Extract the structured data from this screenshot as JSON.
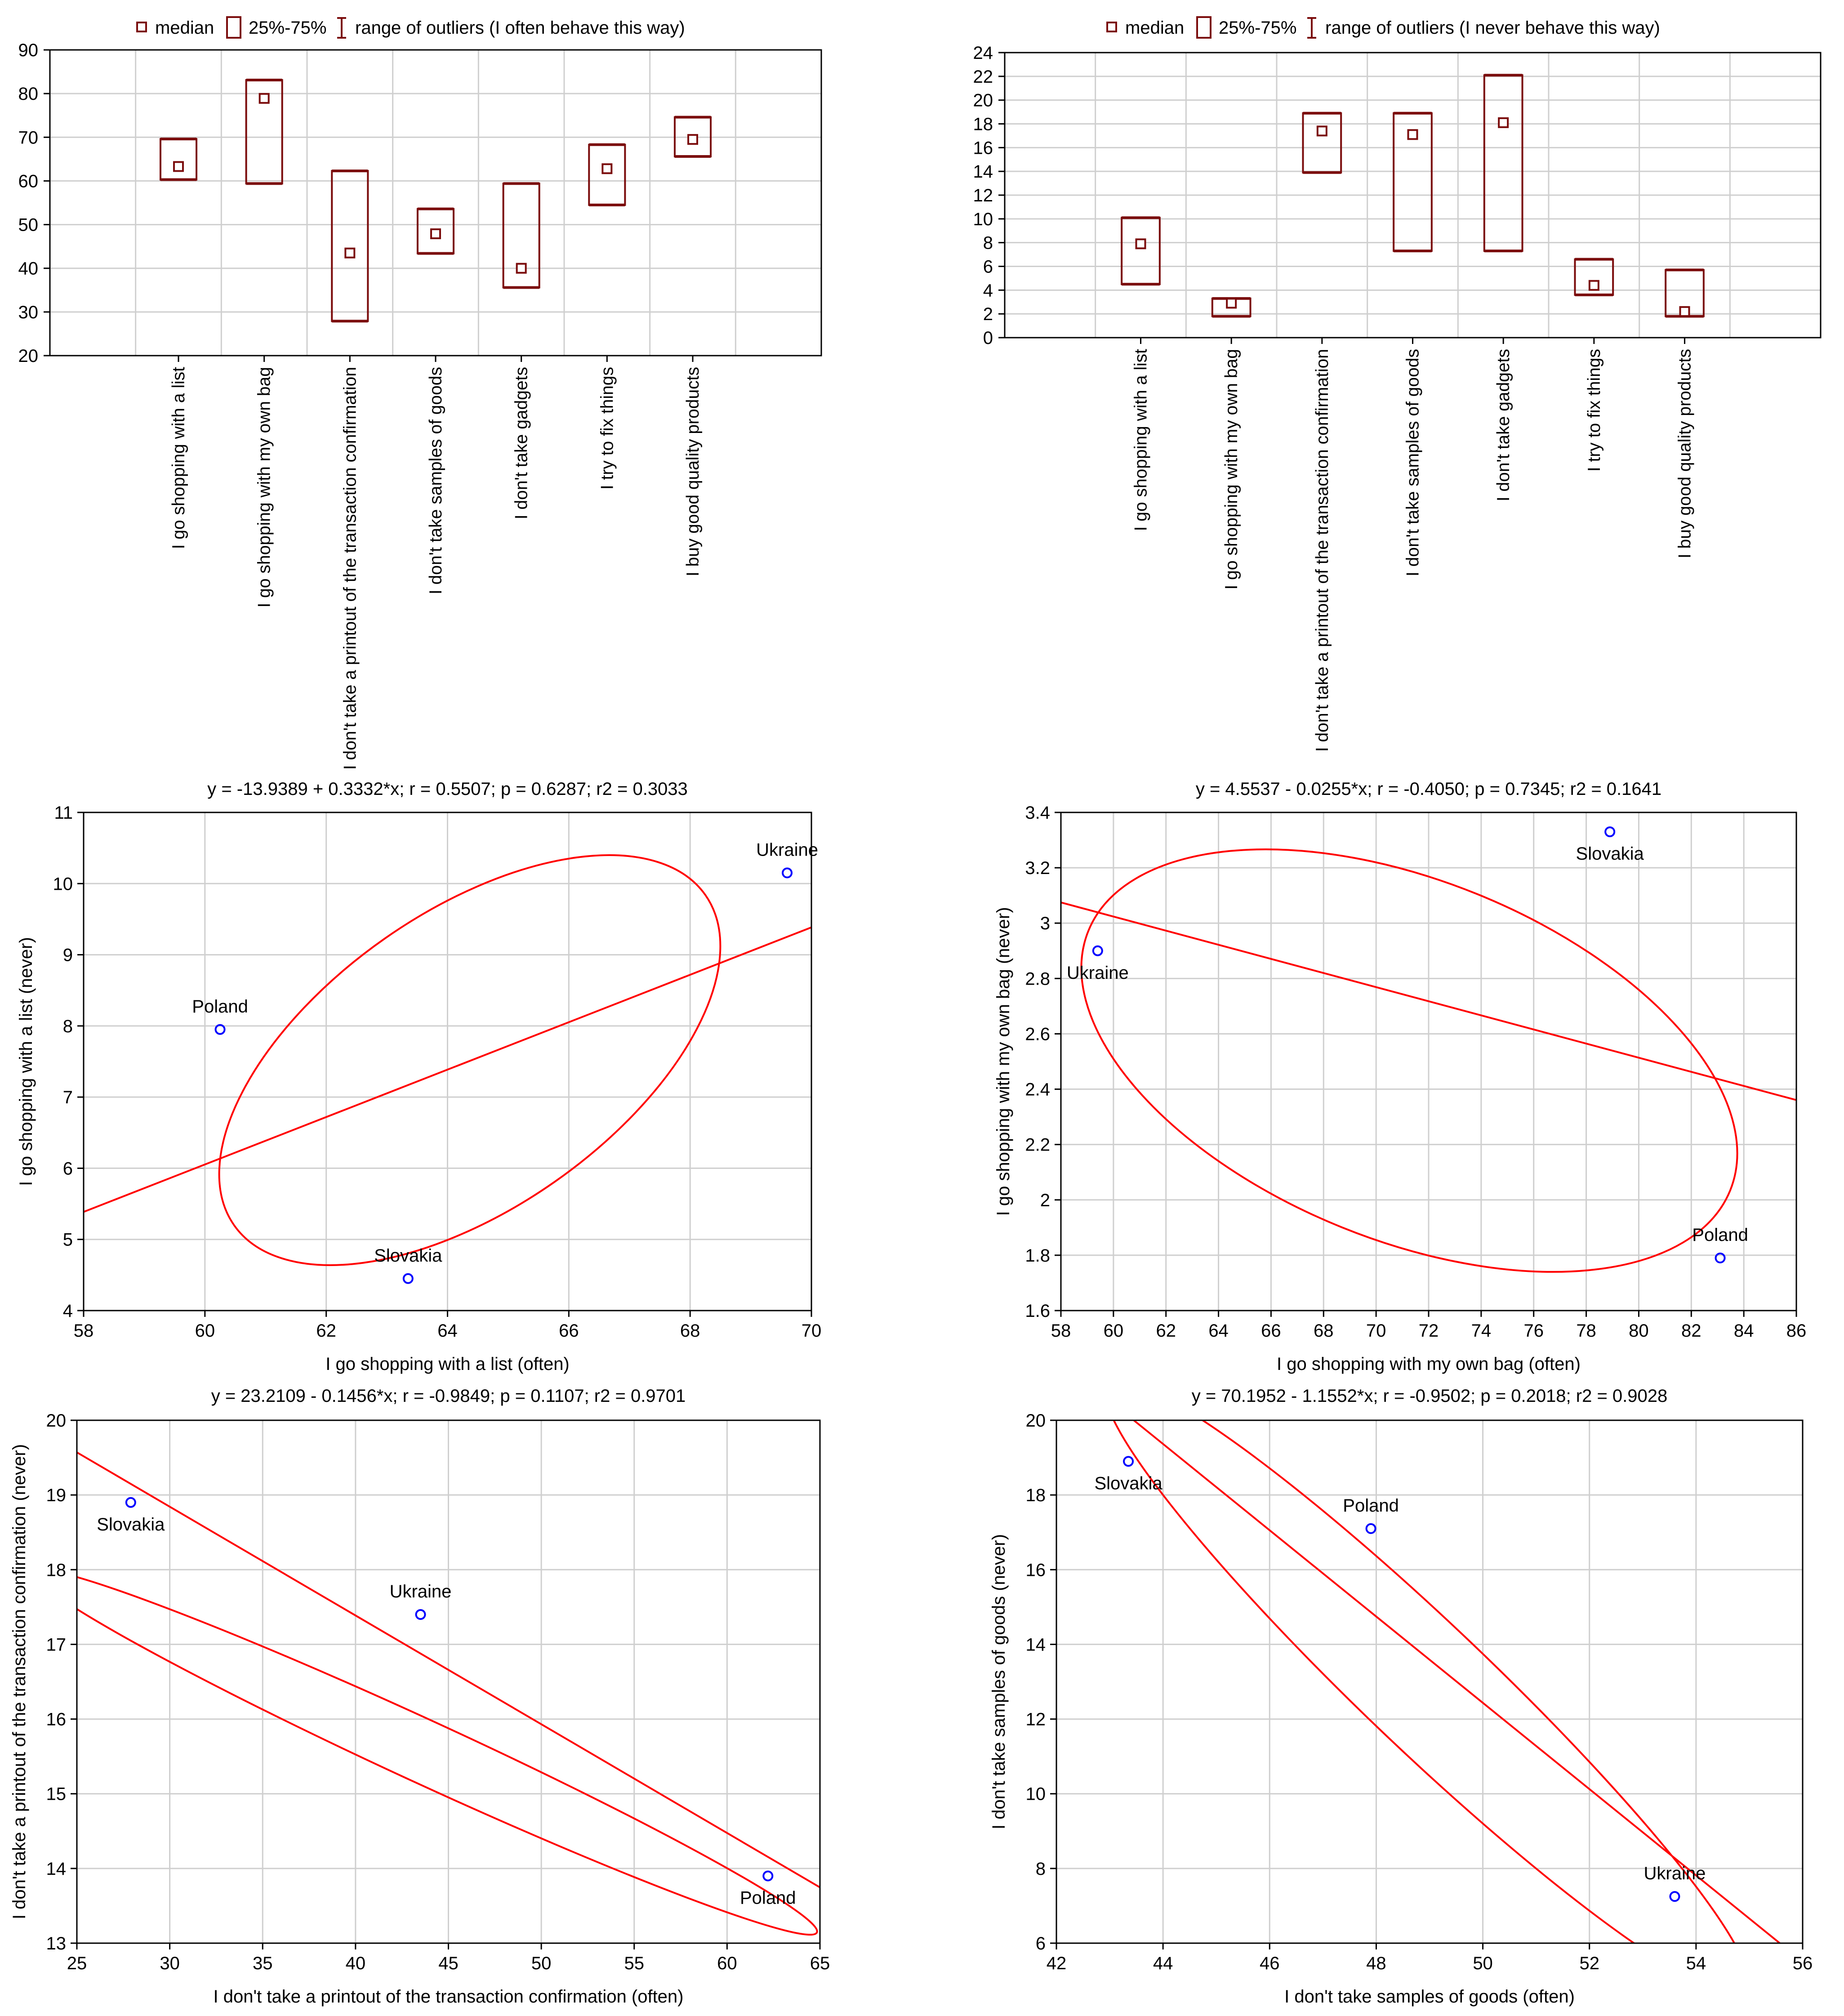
{
  "colors": {
    "box": "#7b0c0c",
    "regression": "#ff0000",
    "point": "#0000ff",
    "grid": "#cfcfcf",
    "frame": "#000000"
  },
  "chart_data": [
    {
      "type": "box",
      "legend": {
        "placement": "top",
        "items": [
          "median",
          "25%-75%",
          "range of outliers (I often behave this way)"
        ]
      },
      "ylim": [
        20,
        90
      ],
      "yticks": [
        20,
        30,
        40,
        50,
        60,
        70,
        80,
        90
      ],
      "categories": [
        "I go shopping with a list",
        "I go shopping with my own bag",
        "I don't take a printout of the transaction confirmation",
        "I don't take samples of goods",
        "I don't take gadgets",
        "I try to fix things",
        "I buy good quality products"
      ],
      "median": [
        63.3,
        78.9,
        43.5,
        47.9,
        40.0,
        62.8,
        69.5
      ],
      "q1": [
        60.3,
        59.4,
        27.9,
        43.4,
        35.6,
        54.5,
        65.6
      ],
      "q3": [
        69.6,
        83.1,
        62.3,
        53.6,
        59.4,
        68.3,
        74.6
      ],
      "grid": true
    },
    {
      "type": "box",
      "legend": {
        "placement": "top",
        "items": [
          "median",
          "25%-75%",
          "range of outliers (I never behave this way)"
        ]
      },
      "ylim": [
        0,
        24
      ],
      "yticks": [
        0,
        2,
        4,
        6,
        8,
        10,
        12,
        14,
        16,
        18,
        20,
        22,
        24
      ],
      "categories": [
        "I go shopping with a list",
        "I go shopping with my own bag",
        "I don't take a printout of the transaction confirmation",
        "I don't take samples of goods",
        "I don't take gadgets",
        "I try to fix things",
        "I buy good quality products"
      ],
      "median": [
        7.9,
        2.9,
        17.4,
        17.1,
        18.1,
        4.4,
        2.2
      ],
      "q1": [
        4.5,
        1.8,
        13.9,
        7.3,
        7.3,
        3.6,
        1.8
      ],
      "q3": [
        10.1,
        3.3,
        18.9,
        18.9,
        22.1,
        6.6,
        5.7
      ],
      "grid": true
    },
    {
      "type": "scatter",
      "title": "y = -13.9389 + 0.3332*x; r = 0.5507; p = 0.6287; r2 = 0.3033",
      "xlabel": "I go shopping with a list (often)",
      "ylabel": "I go shopping with a list (never)",
      "xlim": [
        58,
        70
      ],
      "ylim": [
        4,
        11
      ],
      "xticks": [
        58,
        60,
        62,
        64,
        66,
        68,
        70
      ],
      "yticks": [
        4,
        5,
        6,
        7,
        8,
        9,
        10,
        11
      ],
      "regression": {
        "intercept": -13.9389,
        "slope": 0.3332
      },
      "points": [
        {
          "label": "Poland",
          "x": 60.25,
          "y": 7.95
        },
        {
          "label": "Slovakia",
          "x": 63.35,
          "y": 4.45
        },
        {
          "label": "Ukraine",
          "x": 69.6,
          "y": 10.15
        }
      ],
      "grid": true
    },
    {
      "type": "scatter",
      "title": "y = 4.5537 - 0.0255*x; r = -0.4050; p = 0.7345; r2 = 0.1641",
      "xlabel": "I go shopping with my own bag (often)",
      "ylabel": "I go shopping with my own bag (never)",
      "xlim": [
        58,
        86
      ],
      "ylim": [
        1.6,
        3.4
      ],
      "xticks": [
        58,
        60,
        62,
        64,
        66,
        68,
        70,
        72,
        74,
        76,
        78,
        80,
        82,
        84,
        86
      ],
      "yticks": [
        1.6,
        1.8,
        2.0,
        2.2,
        2.4,
        2.6,
        2.8,
        3.0,
        3.2,
        3.4
      ],
      "regression": {
        "intercept": 4.5537,
        "slope": -0.0255
      },
      "points": [
        {
          "label": "Ukraine",
          "x": 59.4,
          "y": 2.9
        },
        {
          "label": "Slovakia",
          "x": 78.9,
          "y": 3.33
        },
        {
          "label": "Poland",
          "x": 83.1,
          "y": 1.79
        }
      ],
      "grid": true
    },
    {
      "type": "scatter",
      "title": "y = 23.2109 - 0.1456*x; r = -0.9849; p = 0.1107; r2 = 0.9701",
      "xlabel": "I don't take a printout of the transaction confirmation (often)",
      "ylabel": "I don't take a printout of the transaction confirmation (never)",
      "xlim": [
        25,
        65
      ],
      "ylim": [
        13,
        20
      ],
      "xticks": [
        25,
        30,
        35,
        40,
        45,
        50,
        55,
        60,
        65
      ],
      "yticks": [
        13,
        14,
        15,
        16,
        17,
        18,
        19,
        20
      ],
      "regression": {
        "intercept": 23.2109,
        "slope": -0.1456
      },
      "points": [
        {
          "label": "Slovakia",
          "x": 27.9,
          "y": 18.9
        },
        {
          "label": "Ukraine",
          "x": 43.5,
          "y": 17.4
        },
        {
          "label": "Poland",
          "x": 62.2,
          "y": 13.9
        }
      ],
      "grid": true
    },
    {
      "type": "scatter",
      "title": "y = 70.1952 - 1.1552*x; r = -0.9502; p = 0.2018; r2 = 0.9028",
      "xlabel": "I don't take samples of goods (often)",
      "ylabel": "I don't take samples of goods (never)",
      "xlim": [
        42,
        56
      ],
      "ylim": [
        6,
        20
      ],
      "xticks": [
        42,
        44,
        46,
        48,
        50,
        52,
        54,
        56
      ],
      "yticks": [
        6,
        8,
        10,
        12,
        14,
        16,
        18,
        20
      ],
      "regression": {
        "intercept": 70.1952,
        "slope": -1.1552
      },
      "points": [
        {
          "label": "Slovakia",
          "x": 43.35,
          "y": 18.9
        },
        {
          "label": "Poland",
          "x": 47.9,
          "y": 17.1
        },
        {
          "label": "Ukraine",
          "x": 53.6,
          "y": 7.25
        }
      ],
      "grid": true
    }
  ]
}
